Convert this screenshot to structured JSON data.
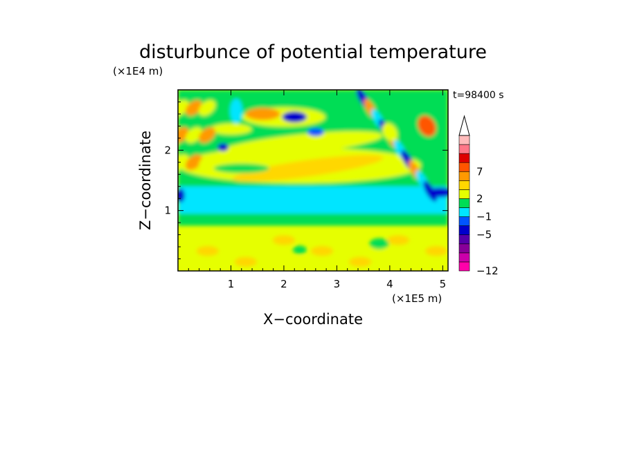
{
  "chart_data": {
    "type": "heatmap",
    "title": "disturbunce of potential temperature",
    "time_label": "t=98400 s",
    "xlabel": "X−coordinate",
    "ylabel": "Z−coordinate",
    "x_unit_label": "(×1E5 m)",
    "y_unit_label": "(×1E4 m)",
    "xlim": [
      0,
      5.1
    ],
    "ylim": [
      0,
      3.0
    ],
    "x_ticks": [
      1,
      2,
      3,
      4,
      5
    ],
    "x_tick_labels": [
      "1",
      "2",
      "3",
      "4",
      "5"
    ],
    "y_ticks": [
      1,
      2
    ],
    "y_tick_labels": [
      "1",
      "2"
    ],
    "colorbar": {
      "levels": [
        -12,
        -5,
        -1,
        2,
        7
      ],
      "level_labels": [
        "−12",
        "−5",
        "−1",
        "2",
        "7"
      ],
      "colors": [
        "#ff00aa",
        "#cc00aa",
        "#880099",
        "#5500aa",
        "#0000cc",
        "#0055ff",
        "#00e5ff",
        "#00dd55",
        "#e6ff00",
        "#ffd700",
        "#ff9900",
        "#ff5500",
        "#dd0000",
        "#ff7788",
        "#ffbbbb"
      ],
      "extend": "max"
    }
  }
}
